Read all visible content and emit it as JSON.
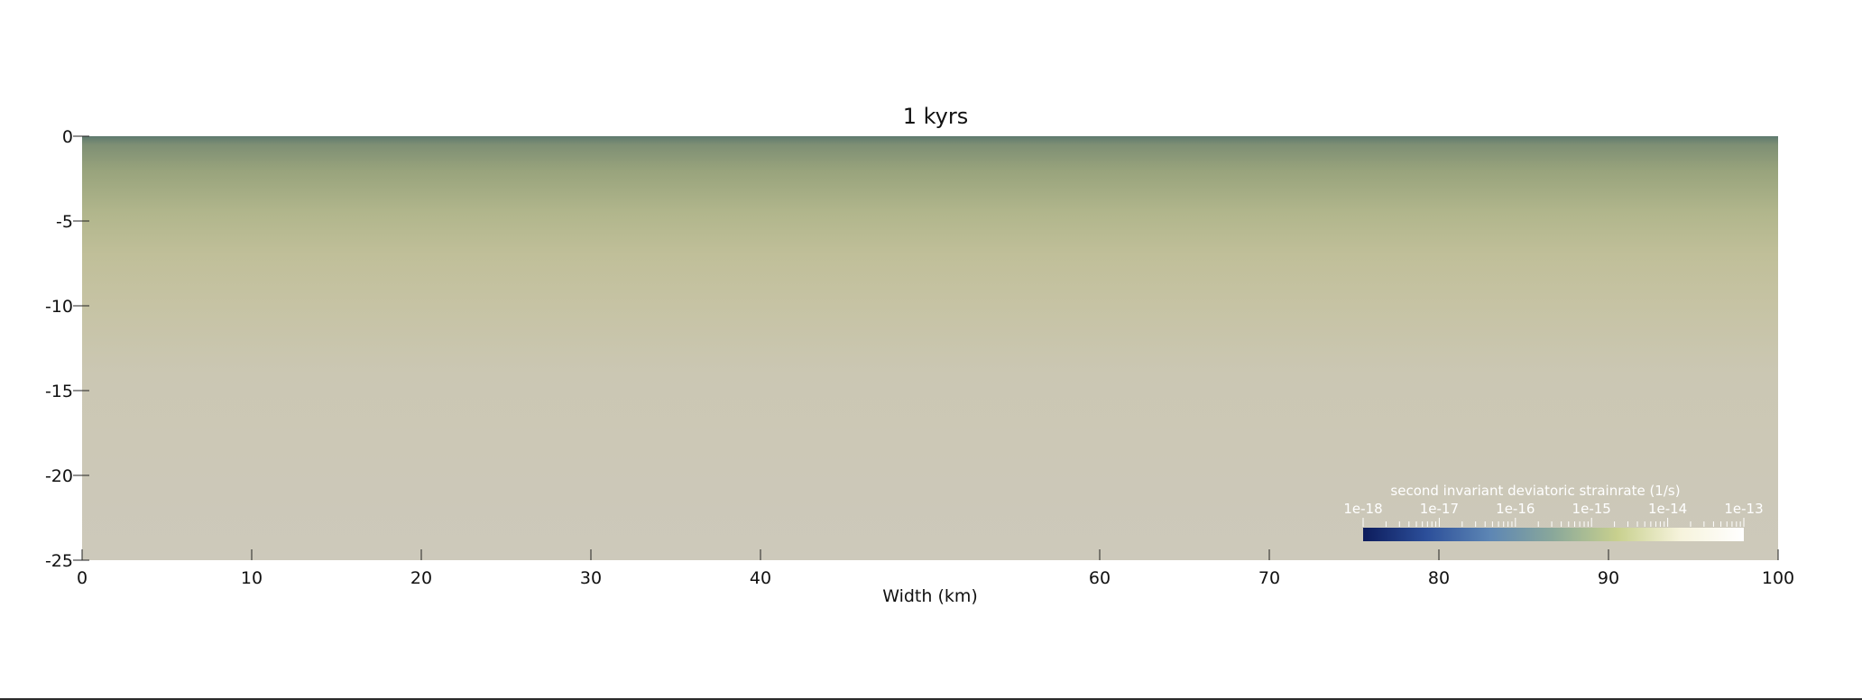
{
  "chart_data": {
    "type": "heatmap",
    "title": "1 kyrs",
    "xlabel": "Width (km)",
    "ylabel": "",
    "xlim": [
      0,
      100
    ],
    "ylim": [
      -25,
      0
    ],
    "x_ticks": [
      0,
      10,
      20,
      30,
      40,
      60,
      70,
      80,
      90,
      100
    ],
    "y_ticks": [
      0,
      -5,
      -10,
      -15,
      -20,
      -25
    ],
    "depth_profile": [
      {
        "depth": 0.0,
        "color": "#5e7a6e"
      },
      {
        "depth": -0.5,
        "color": "#7e8f74"
      },
      {
        "depth": -2.0,
        "color": "#98a37c"
      },
      {
        "depth": -4.5,
        "color": "#b1b68c"
      },
      {
        "depth": -7.0,
        "color": "#c0bf99"
      },
      {
        "depth": -10.0,
        "color": "#c6c3a4"
      },
      {
        "depth": -14.0,
        "color": "#cbc7b3"
      },
      {
        "depth": -25.0,
        "color": "#cdc9bb"
      }
    ],
    "colorbar": {
      "title": "second invariant deviatoric strainrate  (1/s)",
      "scale": "log",
      "range": [
        1e-18,
        1e-13
      ],
      "tick_labels": [
        "1e-18",
        "1e-17",
        "1e-16",
        "1e-15",
        "1e-14",
        "1e-13"
      ],
      "colors": [
        "#0d1c5c",
        "#2c4f9a",
        "#5d86b4",
        "#8aa89a",
        "#c8d08e",
        "#f6f3dc",
        "#ffffff"
      ]
    },
    "grid": false
  }
}
